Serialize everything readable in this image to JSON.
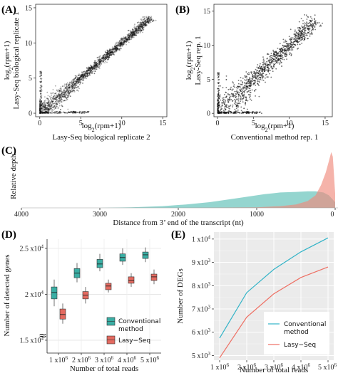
{
  "chart_data": [
    {
      "panel": "(A)",
      "type": "scatter",
      "xlabel_line1": "log",
      "xlabel_sub": "2",
      "xlabel_rest": "(rpm+1)",
      "xlabel_line2": "Lasy-Seq biological replicate 2",
      "ylabel_line1": "log",
      "ylabel_sub": "2",
      "ylabel_rest": "(rpm+1)",
      "ylabel_line2": "Lasy-Seq biological replicate 1",
      "xlim": [
        -0.5,
        15.5
      ],
      "ylim": [
        -0.5,
        15.5
      ],
      "x_ticks": [
        0,
        5,
        10,
        15
      ],
      "y_ticks": [
        0,
        5,
        10,
        15
      ],
      "correlation": "tight diagonal, ~y = x",
      "color": "#111111"
    },
    {
      "panel": "(B)",
      "type": "scatter",
      "xlabel_line1": "log",
      "xlabel_sub": "2",
      "xlabel_rest": "(rpm+1)",
      "xlabel_line2": "Conventional method rep. 1",
      "ylabel_line1": "log",
      "ylabel_sub": "2",
      "ylabel_rest": "(rpm+1)",
      "ylabel_line2": "Lasy-Seq rep. 1",
      "xlim": [
        -0.5,
        16
      ],
      "ylim": [
        -0.5,
        16
      ],
      "x_ticks": [
        0,
        5,
        10,
        15
      ],
      "y_ticks": [
        0,
        5,
        10,
        15
      ],
      "correlation": "broad diagonal",
      "color": "#111111"
    },
    {
      "panel": "(C)",
      "type": "area",
      "xlabel": "Distance from 3’ end of the transcript (nt)",
      "ylabel": "Relative depth",
      "x_ticks": [
        4000,
        3000,
        2000,
        1000,
        0
      ],
      "x_reversed": true,
      "xlim": [
        4000,
        0
      ],
      "ylim": [
        0,
        1
      ],
      "series": [
        {
          "name": "Conventional method",
          "color": "#5bbfb5",
          "x": [
            4000,
            3500,
            3000,
            2600,
            2200,
            1900,
            1600,
            1300,
            1100,
            900,
            700,
            500,
            350,
            250,
            150,
            80,
            0
          ],
          "y": [
            0.0,
            0.0,
            0.0,
            0.01,
            0.03,
            0.06,
            0.1,
            0.16,
            0.2,
            0.24,
            0.27,
            0.28,
            0.29,
            0.29,
            0.27,
            0.22,
            0.1
          ]
        },
        {
          "name": "Lasy-Seq",
          "color": "#ef8a7c",
          "x": [
            4000,
            2000,
            1000,
            700,
            500,
            350,
            250,
            180,
            120,
            80,
            50,
            30,
            15,
            0
          ],
          "y": [
            0.0,
            0.0,
            0.01,
            0.03,
            0.06,
            0.12,
            0.22,
            0.4,
            0.62,
            0.82,
            0.98,
            0.9,
            0.6,
            0.25
          ]
        }
      ]
    },
    {
      "panel": "(D)",
      "type": "box",
      "xlabel": "Number of total reads",
      "ylabel": "Number of detected genes",
      "categories": [
        "1 x10^6",
        "2 x10^6",
        "3 x10^6",
        "4 x10^6",
        "5 x10^6"
      ],
      "cat_base": [
        "1 x10",
        "2 x10",
        "3 x10",
        "4 x10",
        "5 x10"
      ],
      "cat_exp": "6",
      "y_tick_labels": [
        {
          "base": "1.5 x10",
          "exp": "4",
          "value": 15000
        },
        {
          "base": "2 x10",
          "exp": "4",
          "value": 20000
        },
        {
          "base": "2.5 x10",
          "exp": "4",
          "value": 25000
        }
      ],
      "axis_break_glyph": "≈",
      "ylim": [
        13600,
        26000
      ],
      "series": [
        {
          "name": "Conventional method",
          "color": "#3aaea4",
          "boxes": [
            {
              "whislo": 18700,
              "q1": 19500,
              "med": 20200,
              "q3": 20800,
              "whishi": 21600
            },
            {
              "whislo": 21300,
              "q1": 21800,
              "med": 22300,
              "q3": 22800,
              "whishi": 23400
            },
            {
              "whislo": 22500,
              "q1": 22900,
              "med": 23300,
              "q3": 23800,
              "whishi": 24400
            },
            {
              "whislo": 23200,
              "q1": 23600,
              "med": 24000,
              "q3": 24400,
              "whishi": 25000
            },
            {
              "whislo": 23500,
              "q1": 23900,
              "med": 24300,
              "q3": 24600,
              "whishi": 25100
            }
          ]
        },
        {
          "name": "Lasy-Seq",
          "color": "#e46a60",
          "boxes": [
            {
              "whislo": 16800,
              "q1": 17300,
              "med": 17800,
              "q3": 18400,
              "whishi": 19000
            },
            {
              "whislo": 19000,
              "q1": 19500,
              "med": 19900,
              "q3": 20300,
              "whishi": 20800
            },
            {
              "whislo": 20200,
              "q1": 20500,
              "med": 20900,
              "q3": 21200,
              "whishi": 21600
            },
            {
              "whislo": 20800,
              "q1": 21200,
              "med": 21500,
              "q3": 21900,
              "whishi": 22300
            },
            {
              "whislo": 21100,
              "q1": 21500,
              "med": 21900,
              "q3": 22200,
              "whishi": 22700
            }
          ]
        }
      ],
      "legend_labels": [
        "Conventional",
        "method",
        "Lasy−Seq"
      ],
      "legend_position": "bottom-right"
    },
    {
      "panel": "(E)",
      "type": "line",
      "xlabel": "Number of total reads",
      "ylabel": "Number of DEGs",
      "categories": [
        "1 x10^6",
        "2 x10^6",
        "3 x10^6",
        "4 x10^6",
        "5 x10^6"
      ],
      "cat_base": [
        "1 x10",
        "2 x10",
        "3 x10",
        "4 x10",
        "5 x10"
      ],
      "cat_exp": "6",
      "y_tick_labels": [
        {
          "base": "5 x10",
          "exp": "3",
          "value": 5000
        },
        {
          "base": "6 x10",
          "exp": "3",
          "value": 6000
        },
        {
          "base": "7 x10",
          "exp": "3",
          "value": 7000
        },
        {
          "base": "8 x10",
          "exp": "3",
          "value": 8000
        },
        {
          "base": "9 x10",
          "exp": "3",
          "value": 9000
        },
        {
          "base": "1 x10",
          "exp": "4",
          "value": 10000
        }
      ],
      "ylim": [
        4800,
        10300
      ],
      "grid": true,
      "background": "#ebebeb",
      "series": [
        {
          "name": "Conventional method",
          "color": "#31b3c7",
          "values": [
            5750,
            7700,
            8700,
            9450,
            10050
          ]
        },
        {
          "name": "Lasy−Seq",
          "color": "#ee6f63",
          "values": [
            4900,
            6650,
            7650,
            8350,
            8800
          ]
        }
      ],
      "legend_labels": [
        "Conventional",
        "method",
        "Lasy−Seq"
      ],
      "legend_position": "bottom-right"
    }
  ]
}
